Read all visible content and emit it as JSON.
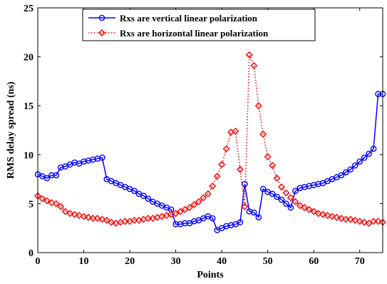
{
  "chart_data": {
    "type": "line",
    "title": "",
    "xlabel": "Points",
    "ylabel": "RMS delay spread (ns)",
    "xlim": [
      0,
      75
    ],
    "ylim": [
      0,
      25
    ],
    "xticks": [
      "0",
      "10",
      "20",
      "30",
      "40",
      "50",
      "60",
      "70"
    ],
    "yticks": [
      "0",
      "5",
      "10",
      "15",
      "20",
      "25"
    ],
    "grid": false,
    "legend_position": "top-center",
    "series": [
      {
        "name": "Rxs are vertical linear polarization",
        "color": "#0000ff",
        "line_style": "solid",
        "marker": "circle",
        "x": [
          0,
          1,
          2,
          3,
          4,
          5,
          6,
          7,
          8,
          9,
          10,
          11,
          12,
          13,
          14,
          15,
          16,
          17,
          18,
          19,
          20,
          21,
          22,
          23,
          24,
          25,
          26,
          27,
          28,
          29,
          30,
          31,
          32,
          33,
          34,
          35,
          36,
          37,
          38,
          39,
          40,
          41,
          42,
          43,
          44,
          45,
          46,
          47,
          48,
          49,
          50,
          51,
          52,
          53,
          54,
          55,
          56,
          57,
          58,
          59,
          60,
          61,
          62,
          63,
          64,
          65,
          66,
          67,
          68,
          69,
          70,
          71,
          72,
          73,
          74,
          75
        ],
        "y": [
          8.0,
          7.8,
          7.6,
          7.9,
          7.9,
          8.7,
          8.8,
          9.0,
          9.2,
          9.1,
          9.3,
          9.4,
          9.5,
          9.6,
          9.7,
          7.5,
          7.3,
          7.1,
          6.9,
          6.7,
          6.5,
          6.3,
          6.0,
          5.8,
          5.5,
          5.2,
          5.0,
          4.8,
          4.6,
          4.4,
          2.9,
          2.9,
          3.0,
          3.0,
          3.2,
          3.3,
          3.5,
          3.7,
          3.5,
          2.3,
          2.5,
          2.7,
          2.8,
          2.9,
          3.1,
          7.0,
          4.2,
          4.1,
          3.6,
          6.5,
          6.2,
          6.0,
          5.7,
          5.4,
          5.0,
          4.6,
          6.3,
          6.6,
          6.7,
          6.8,
          6.9,
          7.0,
          7.1,
          7.3,
          7.5,
          7.7,
          7.9,
          8.2,
          8.5,
          8.9,
          9.3,
          9.7,
          10.1,
          10.6,
          16.2,
          16.2
        ]
      },
      {
        "name": "Rxs are horizontal linear polarization",
        "color": "#ff0000",
        "line_style": "dotted",
        "marker": "diamond",
        "x": [
          0,
          1,
          2,
          3,
          4,
          5,
          6,
          7,
          8,
          9,
          10,
          11,
          12,
          13,
          14,
          15,
          16,
          17,
          18,
          19,
          20,
          21,
          22,
          23,
          24,
          25,
          26,
          27,
          28,
          29,
          30,
          31,
          32,
          33,
          34,
          35,
          36,
          37,
          38,
          39,
          40,
          41,
          42,
          43,
          44,
          45,
          46,
          47,
          48,
          49,
          50,
          51,
          52,
          53,
          54,
          55,
          56,
          57,
          58,
          59,
          60,
          61,
          62,
          63,
          64,
          65,
          66,
          67,
          68,
          69,
          70,
          71,
          72,
          73,
          74,
          75
        ],
        "y": [
          5.8,
          5.5,
          5.3,
          5.1,
          5.0,
          4.7,
          4.2,
          4.0,
          3.9,
          3.8,
          3.7,
          3.6,
          3.5,
          3.5,
          3.4,
          3.3,
          3.1,
          3.0,
          3.1,
          3.2,
          3.2,
          3.3,
          3.3,
          3.4,
          3.5,
          3.5,
          3.6,
          3.7,
          3.8,
          3.9,
          4.0,
          4.2,
          4.4,
          4.6,
          4.9,
          5.2,
          5.6,
          6.0,
          6.8,
          7.8,
          9.0,
          10.6,
          12.3,
          12.4,
          8.5,
          4.7,
          20.2,
          19.1,
          15.0,
          12.1,
          9.8,
          8.9,
          7.6,
          6.7,
          6.1,
          5.6,
          5.2,
          4.8,
          4.6,
          4.4,
          4.2,
          4.0,
          3.9,
          3.8,
          3.7,
          3.6,
          3.5,
          3.4,
          3.4,
          3.3,
          3.2,
          3.1,
          3.0,
          3.2,
          3.2,
          3.1
        ]
      }
    ]
  }
}
